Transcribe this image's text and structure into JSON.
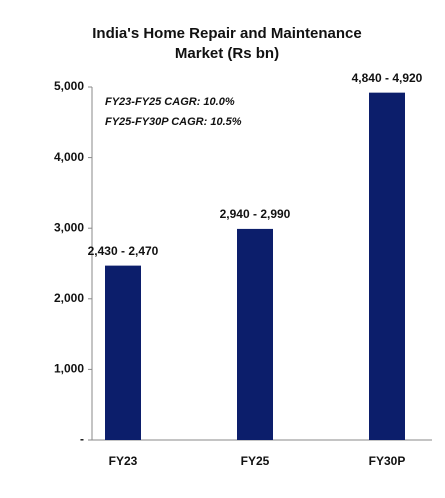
{
  "chart_data": {
    "type": "bar",
    "title": "India's Home Repair and Maintenance Market (Rs bn)",
    "categories": [
      "FY23",
      "FY25",
      "FY30P"
    ],
    "values": [
      2470,
      2990,
      4920
    ],
    "value_labels": [
      "2,430 -  2,470",
      "2,940 - 2,990",
      "4,840 -  4,920"
    ],
    "color": "#0c1e6b",
    "ylim": [
      0,
      5000
    ],
    "yticks": [
      {
        "value": 0,
        "label": "-"
      },
      {
        "value": 1000,
        "label": "1,000"
      },
      {
        "value": 2000,
        "label": "2,000"
      },
      {
        "value": 3000,
        "label": "3,000"
      },
      {
        "value": 4000,
        "label": "4,000"
      },
      {
        "value": 5000,
        "label": "5,000"
      }
    ],
    "annotations": [
      "FY23-FY25 CAGR: 10.0%",
      "FY25-FY30P CAGR: 10.5%"
    ]
  }
}
